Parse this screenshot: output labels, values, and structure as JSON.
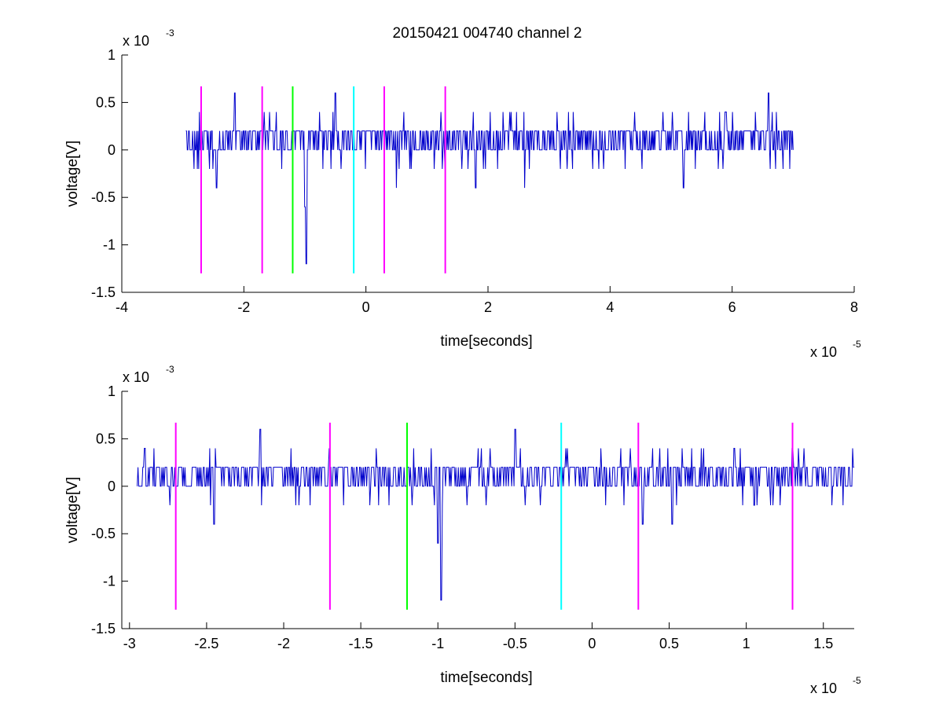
{
  "figure_title": "20150421 004740 channel 2",
  "chart_data": [
    {
      "type": "line",
      "title": "20150421 004740 channel 2",
      "xlabel": "time[seconds]",
      "ylabel": "voltage[V]",
      "x_exponent_label": "x 10",
      "x_exponent_power": "-5",
      "y_exponent_label": "x 10",
      "y_exponent_power": "-3",
      "xlim": [
        -4,
        8
      ],
      "ylim": [
        -1.5,
        1
      ],
      "x_units_scale": "1e-5 s",
      "y_units_scale": "1e-3 V",
      "xticks": [
        -4,
        -2,
        0,
        2,
        4,
        6,
        8
      ],
      "xtick_labels": [
        "-4",
        "-2",
        "0",
        "2",
        "4",
        "6",
        "8"
      ],
      "yticks": [
        -1.5,
        -1,
        -0.5,
        0,
        0.5,
        1
      ],
      "ytick_labels": [
        "-1.5",
        "-1",
        "-0.5",
        "0",
        "0.5",
        "1"
      ],
      "grid": false,
      "signal": {
        "color": "#0000cc",
        "x_range": [
          -2.95,
          7.0
        ],
        "baseline": [
          0,
          0.2
        ],
        "noise_levels": [
          -0.2,
          0,
          0.2,
          0.4
        ],
        "spikes": [
          {
            "x": -2.45,
            "y": -0.4
          },
          {
            "x": -2.15,
            "y": 0.6
          },
          {
            "x": -1.0,
            "y": -0.6
          },
          {
            "x": -0.98,
            "y": -1.2
          },
          {
            "x": -0.5,
            "y": 0.6
          },
          {
            "x": 0.5,
            "y": -0.4
          },
          {
            "x": 1.8,
            "y": -0.4
          },
          {
            "x": 2.6,
            "y": -0.4
          },
          {
            "x": 5.2,
            "y": -0.4
          },
          {
            "x": 6.6,
            "y": 0.6
          }
        ]
      },
      "markers": [
        {
          "x": -2.7,
          "color": "#ff00ff"
        },
        {
          "x": -1.7,
          "color": "#ff00ff"
        },
        {
          "x": -1.2,
          "color": "#00ff00"
        },
        {
          "x": -0.2,
          "color": "#00ffff"
        },
        {
          "x": 0.3,
          "color": "#ff00ff"
        },
        {
          "x": 1.3,
          "color": "#ff00ff"
        }
      ],
      "marker_range": [
        -1.3,
        0.67
      ]
    },
    {
      "type": "line",
      "title": "",
      "xlabel": "time[seconds]",
      "ylabel": "voltage[V]",
      "x_exponent_label": "x 10",
      "x_exponent_power": "-5",
      "y_exponent_label": "x 10",
      "y_exponent_power": "-3",
      "xlim": [
        -3.05,
        1.7
      ],
      "ylim": [
        -1.5,
        1
      ],
      "x_units_scale": "1e-5 s",
      "y_units_scale": "1e-3 V",
      "xticks": [
        -3,
        -2.5,
        -2,
        -1.5,
        -1,
        -0.5,
        0,
        0.5,
        1,
        1.5
      ],
      "xtick_labels": [
        "-3",
        "-2.5",
        "-2",
        "-1.5",
        "-1",
        "-0.5",
        "0",
        "0.5",
        "1",
        "1.5"
      ],
      "yticks": [
        -1.5,
        -1,
        -0.5,
        0,
        0.5,
        1
      ],
      "ytick_labels": [
        "-1.5",
        "-1",
        "-0.5",
        "0",
        "0.5",
        "1"
      ],
      "grid": false,
      "signal": {
        "color": "#0000cc",
        "x_range": [
          -2.95,
          1.7
        ],
        "baseline": [
          0,
          0.2
        ],
        "noise_levels": [
          -0.2,
          0,
          0.2,
          0.4
        ],
        "spikes": [
          {
            "x": -2.9,
            "y": 0.4
          },
          {
            "x": -2.45,
            "y": -0.4
          },
          {
            "x": -2.15,
            "y": 0.6
          },
          {
            "x": -1.0,
            "y": -0.6
          },
          {
            "x": -0.98,
            "y": -1.2
          },
          {
            "x": -0.5,
            "y": 0.6
          },
          {
            "x": 0.33,
            "y": -0.4
          },
          {
            "x": 0.52,
            "y": -0.4
          },
          {
            "x": 1.3,
            "y": 0.4
          }
        ]
      },
      "markers": [
        {
          "x": -2.7,
          "color": "#ff00ff"
        },
        {
          "x": -1.7,
          "color": "#ff00ff"
        },
        {
          "x": -1.2,
          "color": "#00ff00"
        },
        {
          "x": -0.2,
          "color": "#00ffff"
        },
        {
          "x": 0.3,
          "color": "#ff00ff"
        },
        {
          "x": 1.3,
          "color": "#ff00ff"
        }
      ],
      "marker_range": [
        -1.3,
        0.67
      ]
    }
  ]
}
